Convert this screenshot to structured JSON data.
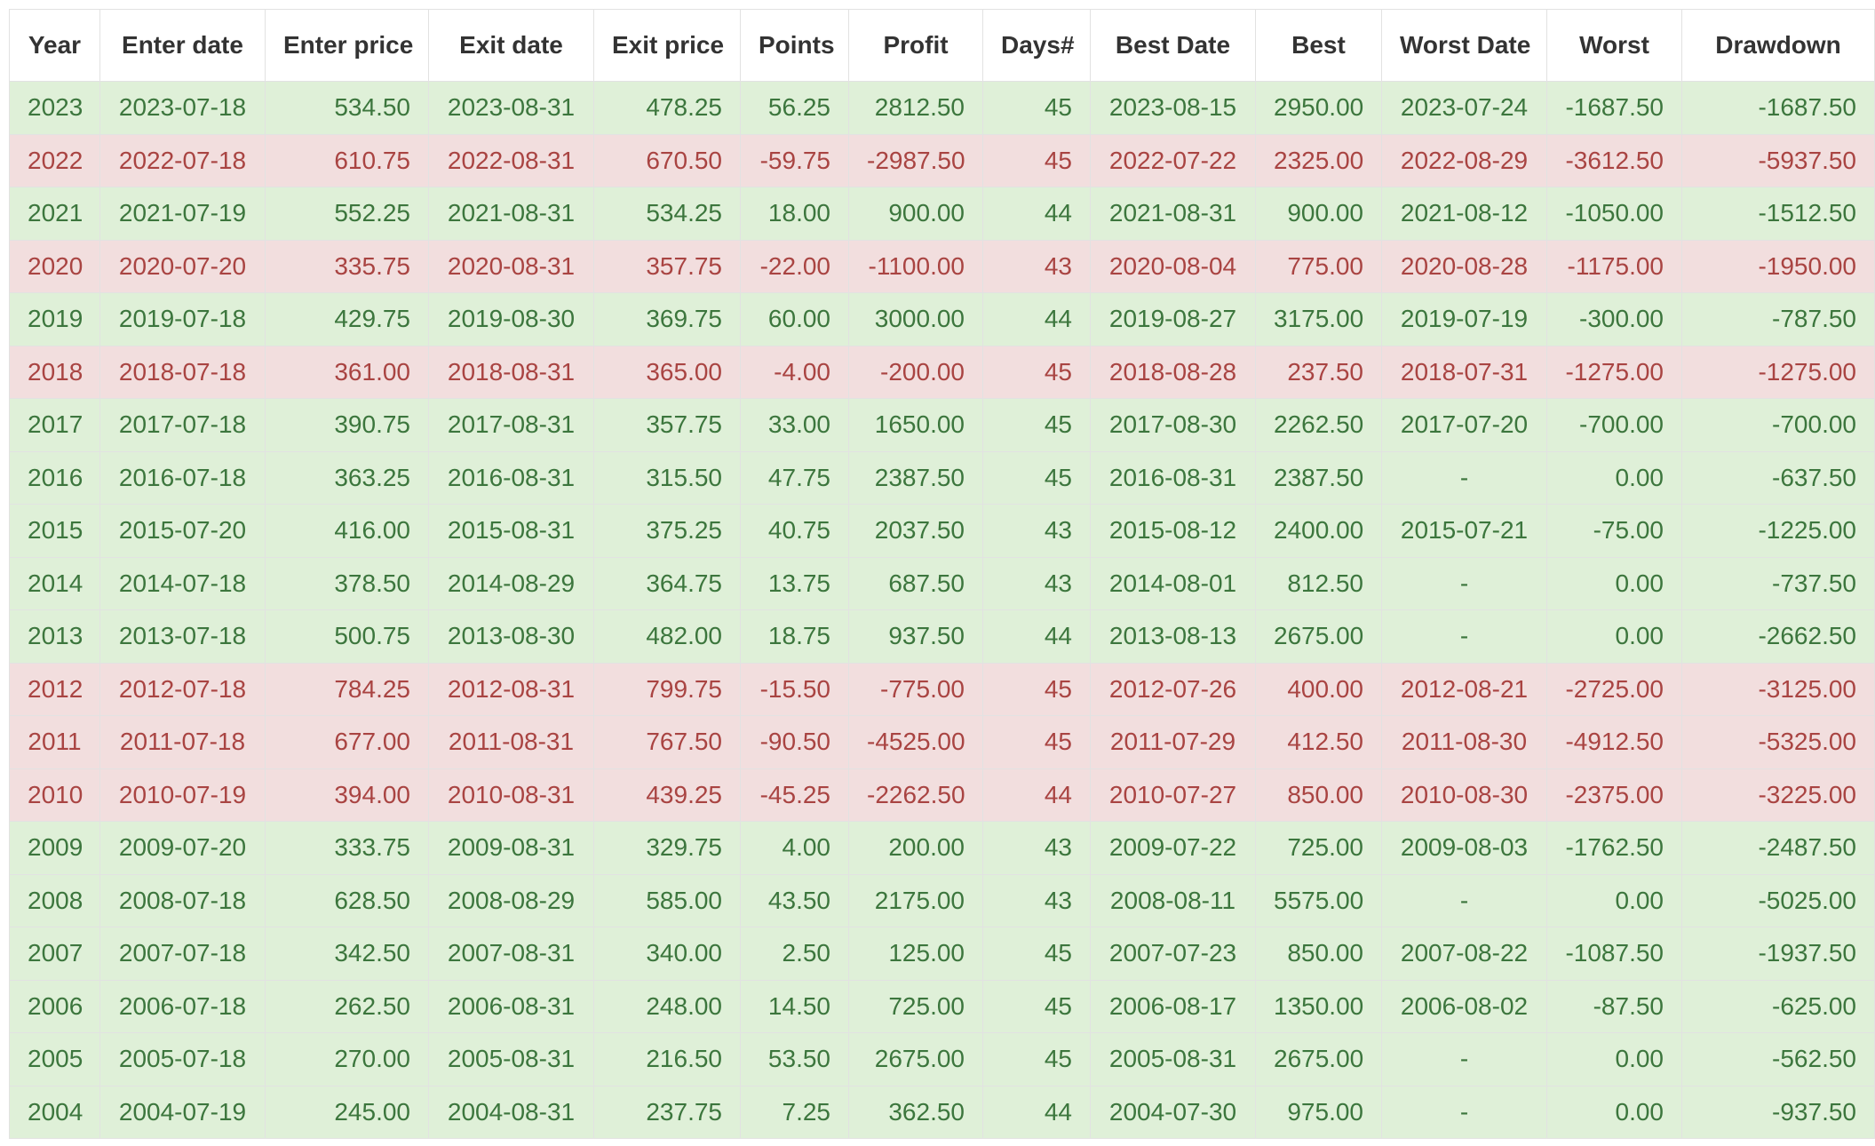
{
  "table": {
    "columns": [
      "Year",
      "Enter date",
      "Enter price",
      "Exit date",
      "Exit price",
      "Points",
      "Profit",
      "Days#",
      "Best Date",
      "Best",
      "Worst Date",
      "Worst",
      "Drawdown"
    ],
    "rows": [
      {
        "result": "win",
        "cells": [
          "2023",
          "2023-07-18",
          "534.50",
          "2023-08-31",
          "478.25",
          "56.25",
          "2812.50",
          "45",
          "2023-08-15",
          "2950.00",
          "2023-07-24",
          "-1687.50",
          "-1687.50"
        ]
      },
      {
        "result": "loss",
        "cells": [
          "2022",
          "2022-07-18",
          "610.75",
          "2022-08-31",
          "670.50",
          "-59.75",
          "-2987.50",
          "45",
          "2022-07-22",
          "2325.00",
          "2022-08-29",
          "-3612.50",
          "-5937.50"
        ]
      },
      {
        "result": "win",
        "cells": [
          "2021",
          "2021-07-19",
          "552.25",
          "2021-08-31",
          "534.25",
          "18.00",
          "900.00",
          "44",
          "2021-08-31",
          "900.00",
          "2021-08-12",
          "-1050.00",
          "-1512.50"
        ]
      },
      {
        "result": "loss",
        "cells": [
          "2020",
          "2020-07-20",
          "335.75",
          "2020-08-31",
          "357.75",
          "-22.00",
          "-1100.00",
          "43",
          "2020-08-04",
          "775.00",
          "2020-08-28",
          "-1175.00",
          "-1950.00"
        ]
      },
      {
        "result": "win",
        "cells": [
          "2019",
          "2019-07-18",
          "429.75",
          "2019-08-30",
          "369.75",
          "60.00",
          "3000.00",
          "44",
          "2019-08-27",
          "3175.00",
          "2019-07-19",
          "-300.00",
          "-787.50"
        ]
      },
      {
        "result": "loss",
        "cells": [
          "2018",
          "2018-07-18",
          "361.00",
          "2018-08-31",
          "365.00",
          "-4.00",
          "-200.00",
          "45",
          "2018-08-28",
          "237.50",
          "2018-07-31",
          "-1275.00",
          "-1275.00"
        ]
      },
      {
        "result": "win",
        "cells": [
          "2017",
          "2017-07-18",
          "390.75",
          "2017-08-31",
          "357.75",
          "33.00",
          "1650.00",
          "45",
          "2017-08-30",
          "2262.50",
          "2017-07-20",
          "-700.00",
          "-700.00"
        ]
      },
      {
        "result": "win",
        "cells": [
          "2016",
          "2016-07-18",
          "363.25",
          "2016-08-31",
          "315.50",
          "47.75",
          "2387.50",
          "45",
          "2016-08-31",
          "2387.50",
          "-",
          "0.00",
          "-637.50"
        ]
      },
      {
        "result": "win",
        "cells": [
          "2015",
          "2015-07-20",
          "416.00",
          "2015-08-31",
          "375.25",
          "40.75",
          "2037.50",
          "43",
          "2015-08-12",
          "2400.00",
          "2015-07-21",
          "-75.00",
          "-1225.00"
        ]
      },
      {
        "result": "win",
        "cells": [
          "2014",
          "2014-07-18",
          "378.50",
          "2014-08-29",
          "364.75",
          "13.75",
          "687.50",
          "43",
          "2014-08-01",
          "812.50",
          "-",
          "0.00",
          "-737.50"
        ]
      },
      {
        "result": "win",
        "cells": [
          "2013",
          "2013-07-18",
          "500.75",
          "2013-08-30",
          "482.00",
          "18.75",
          "937.50",
          "44",
          "2013-08-13",
          "2675.00",
          "-",
          "0.00",
          "-2662.50"
        ]
      },
      {
        "result": "loss",
        "cells": [
          "2012",
          "2012-07-18",
          "784.25",
          "2012-08-31",
          "799.75",
          "-15.50",
          "-775.00",
          "45",
          "2012-07-26",
          "400.00",
          "2012-08-21",
          "-2725.00",
          "-3125.00"
        ]
      },
      {
        "result": "loss",
        "cells": [
          "2011",
          "2011-07-18",
          "677.00",
          "2011-08-31",
          "767.50",
          "-90.50",
          "-4525.00",
          "45",
          "2011-07-29",
          "412.50",
          "2011-08-30",
          "-4912.50",
          "-5325.00"
        ]
      },
      {
        "result": "loss",
        "cells": [
          "2010",
          "2010-07-19",
          "394.00",
          "2010-08-31",
          "439.25",
          "-45.25",
          "-2262.50",
          "44",
          "2010-07-27",
          "850.00",
          "2010-08-30",
          "-2375.00",
          "-3225.00"
        ]
      },
      {
        "result": "win",
        "cells": [
          "2009",
          "2009-07-20",
          "333.75",
          "2009-08-31",
          "329.75",
          "4.00",
          "200.00",
          "43",
          "2009-07-22",
          "725.00",
          "2009-08-03",
          "-1762.50",
          "-2487.50"
        ]
      },
      {
        "result": "win",
        "cells": [
          "2008",
          "2008-07-18",
          "628.50",
          "2008-08-29",
          "585.00",
          "43.50",
          "2175.00",
          "43",
          "2008-08-11",
          "5575.00",
          "-",
          "0.00",
          "-5025.00"
        ]
      },
      {
        "result": "win",
        "cells": [
          "2007",
          "2007-07-18",
          "342.50",
          "2007-08-31",
          "340.00",
          "2.50",
          "125.00",
          "45",
          "2007-07-23",
          "850.00",
          "2007-08-22",
          "-1087.50",
          "-1937.50"
        ]
      },
      {
        "result": "win",
        "cells": [
          "2006",
          "2006-07-18",
          "262.50",
          "2006-08-31",
          "248.00",
          "14.50",
          "725.00",
          "45",
          "2006-08-17",
          "1350.00",
          "2006-08-02",
          "-87.50",
          "-625.00"
        ]
      },
      {
        "result": "win",
        "cells": [
          "2005",
          "2005-07-18",
          "270.00",
          "2005-08-31",
          "216.50",
          "53.50",
          "2675.00",
          "45",
          "2005-08-31",
          "2675.00",
          "-",
          "0.00",
          "-562.50"
        ]
      },
      {
        "result": "win",
        "cells": [
          "2004",
          "2004-07-19",
          "245.00",
          "2004-08-31",
          "237.75",
          "7.25",
          "362.50",
          "44",
          "2004-07-30",
          "975.00",
          "-",
          "0.00",
          "-937.50"
        ]
      }
    ]
  },
  "colors": {
    "win_bg": "#dff0d8",
    "win_text": "#3c763d",
    "loss_bg": "#f2dede",
    "loss_text": "#a94442",
    "header_text": "#333333",
    "border": "#e2e2e2"
  }
}
